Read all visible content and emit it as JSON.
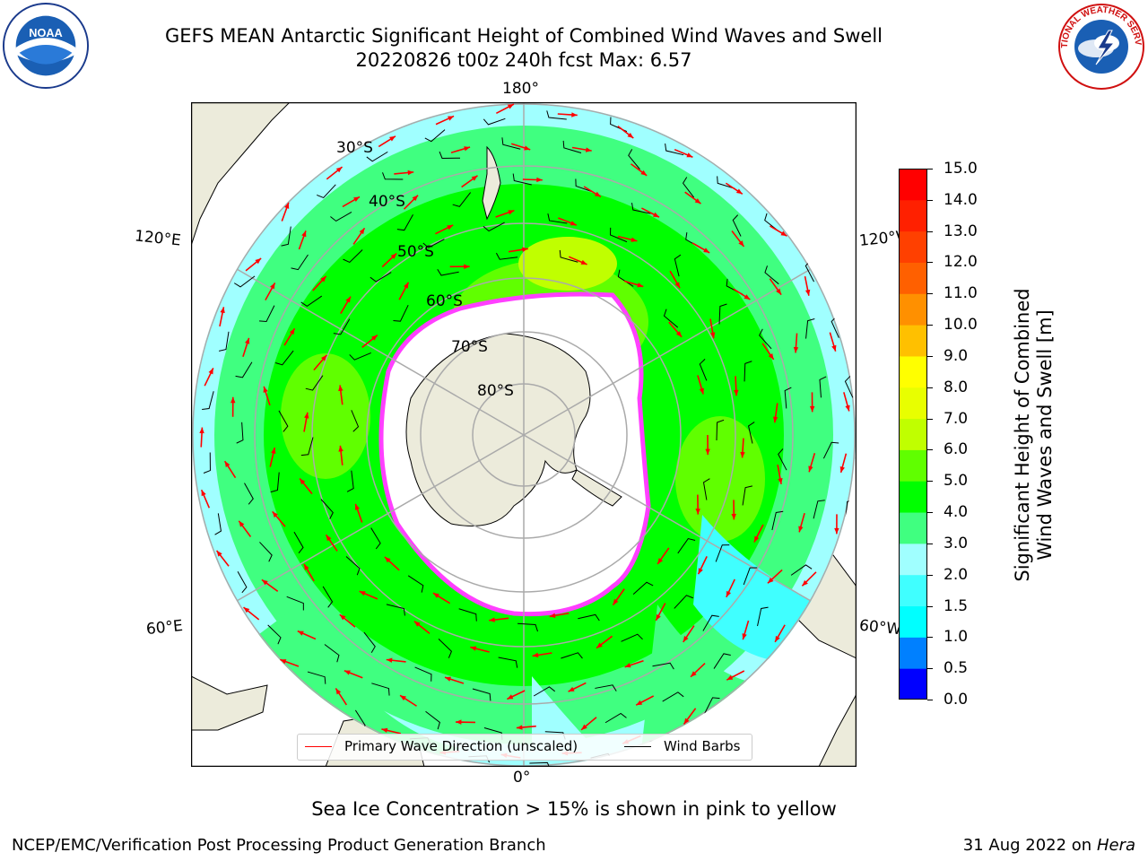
{
  "header": {
    "title_line1": "GEFS MEAN Antarctic Significant Height of Combined Wind Waves and Swell",
    "title_line2": "20220826 t00z 240h fcst   Max: 6.57"
  },
  "logos": {
    "left": "NOAA",
    "right": "NATIONAL WEATHER SERVICE"
  },
  "map": {
    "projection": "south-polar-stereographic",
    "lon_labels": {
      "top": "180°",
      "bottom": "0°",
      "upper_left": "120°E",
      "upper_right": "120°W",
      "lower_left": "60°E",
      "lower_right": "60°W"
    },
    "lat_labels": [
      "30°S",
      "40°S",
      "50°S",
      "60°S",
      "70°S",
      "80°S"
    ]
  },
  "colorbar": {
    "label_line1": "Significant Height of Combined",
    "label_line2": "Wind Waves and Swell [m]",
    "ticks": [
      "0.0",
      "0.5",
      "1.0",
      "1.5",
      "2.0",
      "3.0",
      "4.0",
      "5.0",
      "6.0",
      "7.0",
      "8.0",
      "9.0",
      "10.0",
      "11.0",
      "12.0",
      "13.0",
      "14.0",
      "15.0"
    ],
    "colors": [
      "#0000ff",
      "#0080ff",
      "#00ffff",
      "#40ffff",
      "#a0ffff",
      "#40ff80",
      "#00ff00",
      "#60ff00",
      "#c0ff00",
      "#e8ff00",
      "#ffff00",
      "#ffc000",
      "#ff9000",
      "#ff6000",
      "#ff4000",
      "#ff2000",
      "#ff0000"
    ]
  },
  "legend": {
    "wave_label": "Primary Wave Direction (unscaled)",
    "wind_label": "Wind Barbs",
    "wave_color": "#ff0000",
    "wind_color": "#000000"
  },
  "footer": {
    "note": "Sea Ice Concentration > 15% is shown in pink to yellow",
    "left": "NCEP/EMC/Verification Post Processing Product Generation Branch",
    "right_date": "31 Aug 2022 on",
    "right_host": "Hera"
  }
}
